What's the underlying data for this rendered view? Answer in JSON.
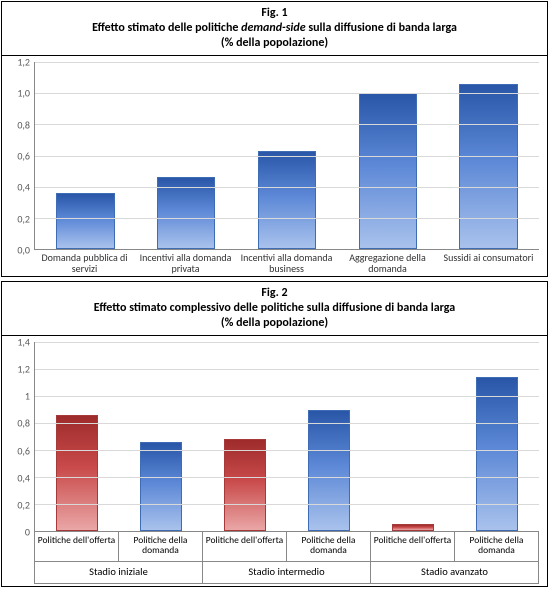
{
  "fig1": {
    "type": "bar",
    "title_line1": "Fig. 1",
    "title_line2_pre": "Effetto stimato delle politiche ",
    "title_line2_italic": "demand-side",
    "title_line2_post": " sulla diffusione di banda larga",
    "title_line3": "(% della popolazione)",
    "ylim": [
      0.0,
      1.2
    ],
    "ytick_step": 0.2,
    "yticks": [
      "0,0",
      "0,2",
      "0,4",
      "0,6",
      "0,8",
      "1,0",
      "1,2"
    ],
    "categories": [
      "Domanda pubblica di servizi",
      "Incentivi alla domanda privata",
      "Incentivi alla domanda business",
      "Aggregazione della domanda",
      "Sussidi ai consumatori"
    ],
    "values": [
      0.36,
      0.46,
      0.63,
      1.0,
      1.06
    ],
    "bar_color": "blue-grad",
    "grid_color": "#d9d9d9",
    "background_color": "#ffffff"
  },
  "fig2": {
    "type": "grouped-bar",
    "title_line1": "Fig. 2",
    "title_line2": "Effetto stimato complessivo delle politiche sulla diffusione di banda larga",
    "title_line3": "(% della popolazione)",
    "ylim": [
      0.0,
      1.4
    ],
    "ytick_step": 0.2,
    "yticks": [
      "0",
      "0,2",
      "0,4",
      "0,6",
      "0,8",
      "1",
      "1,2",
      "1,4"
    ],
    "groups": [
      "Stadio iniziale",
      "Stadio intermedio",
      "Stadio avanzato"
    ],
    "sub_labels": [
      "Politiche dell'offerta",
      "Politiche della domanda",
      "Politiche dell'offerta",
      "Politiche della domanda",
      "Politiche dell'offerta",
      "Politiche della domanda"
    ],
    "bars": [
      {
        "value": 0.86,
        "color": "red-grad"
      },
      {
        "value": 0.66,
        "color": "blue-grad"
      },
      {
        "value": 0.68,
        "color": "red-grad"
      },
      {
        "value": 0.9,
        "color": "blue-grad"
      },
      {
        "value": 0.05,
        "color": "red-grad"
      },
      {
        "value": 1.14,
        "color": "blue-grad"
      }
    ],
    "grid_color": "#d9d9d9",
    "background_color": "#ffffff"
  }
}
